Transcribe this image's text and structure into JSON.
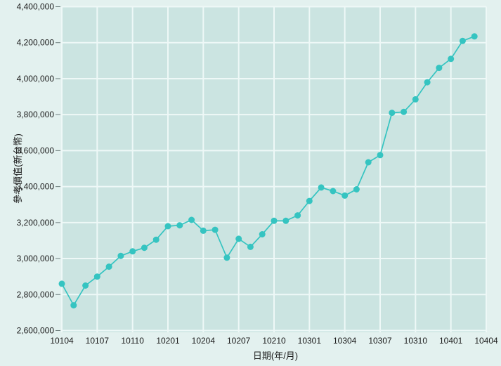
{
  "chart_data": {
    "type": "line",
    "title": "",
    "xlabel": "日期(年/月)",
    "ylabel": "參考價值(新台幣)",
    "x": [
      "10104",
      "10105",
      "10106",
      "10107",
      "10108",
      "10109",
      "10110",
      "10111",
      "10112",
      "10201",
      "10202",
      "10203",
      "10204",
      "10205",
      "10206",
      "10207",
      "10208",
      "10209",
      "10210",
      "10211",
      "10212",
      "10301",
      "10302",
      "10303",
      "10304",
      "10305",
      "10306",
      "10307",
      "10308",
      "10309",
      "10310",
      "10311",
      "10312",
      "10401",
      "10402",
      "10403"
    ],
    "values": [
      2860000,
      2740000,
      2850000,
      2900000,
      2955000,
      3015000,
      3040000,
      3060000,
      3105000,
      3180000,
      3185000,
      3215000,
      3155000,
      3160000,
      3005000,
      3110000,
      3065000,
      3135000,
      3210000,
      3210000,
      3240000,
      3320000,
      3395000,
      3375000,
      3350000,
      3385000,
      3535000,
      3575000,
      3810000,
      3815000,
      3885000,
      3980000,
      4060000,
      4110000,
      4210000,
      4235000
    ],
    "x_tick_labels": [
      "10104",
      "10107",
      "10110",
      "10201",
      "10204",
      "10207",
      "10210",
      "10301",
      "10304",
      "10307",
      "10310",
      "10401",
      "10404"
    ],
    "x_tick_month_offsets": [
      0,
      3,
      6,
      9,
      12,
      15,
      18,
      21,
      24,
      27,
      30,
      33,
      36
    ],
    "y_tick_labels": [
      "2,600,000",
      "2,800,000",
      "3,000,000",
      "3,200,000",
      "3,400,000",
      "3,600,000",
      "3,800,000",
      "4,000,000",
      "4,200,000",
      "4,400,000"
    ],
    "y_tick_values": [
      2600000,
      2800000,
      3000000,
      3200000,
      3400000,
      3600000,
      3800000,
      4000000,
      4200000,
      4400000
    ],
    "ylim": [
      2600000,
      4400000
    ],
    "x_months_total": 36,
    "grid": true,
    "legend": "none",
    "marker": "circle",
    "colors": {
      "series": "#35c4c1",
      "plot_background": "#cbe4e1",
      "outer_background": "#e3f1ef",
      "gridline": "#eef8f7",
      "tick_mark": "#6f7f7e",
      "text": "#1a1a1a"
    }
  }
}
